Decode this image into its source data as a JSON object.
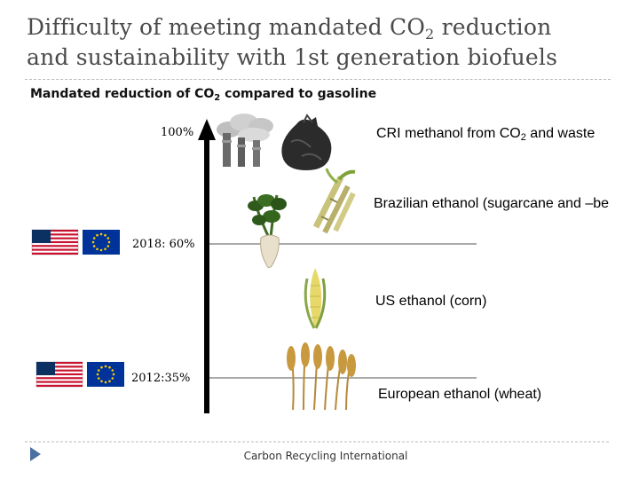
{
  "slide": {
    "title_part1": "Difficulty of meeting mandated CO",
    "title_sub": "2",
    "title_part2": " reduction",
    "title_line2": "and sustainability with 1st generation biofuels",
    "subtitle_part1": "Mandated reduction of CO",
    "subtitle_sub": "2",
    "subtitle_part2": " compared to gasoline"
  },
  "levels": {
    "top": "100%",
    "mid": "2018: 60%",
    "low": "2012:35%"
  },
  "fuels": {
    "cri_part1": "CRI methanol from CO",
    "cri_sub": "2",
    "cri_part2": " and waste",
    "brazil": "Brazilian ethanol (sugarcane and –be",
    "us": "US ethanol (corn)",
    "europe": "European ethanol (wheat)"
  },
  "footer": "Carbon Recycling International",
  "colors": {
    "title": "#4a4a4a",
    "axis": "#000000",
    "level_line": "#777777",
    "flag_red": "#c8102e",
    "flag_blue": "#0a3161",
    "eu_blue": "#003399",
    "eu_star": "#ffcc00",
    "nav_arrow": "#4a6fa0"
  },
  "icons": [
    "smokestack-icon",
    "garbage-bag-icon",
    "sugar-beet-icon",
    "sugarcane-icon",
    "corn-icon",
    "wheat-icon",
    "us-flag-icon",
    "eu-flag-icon"
  ]
}
